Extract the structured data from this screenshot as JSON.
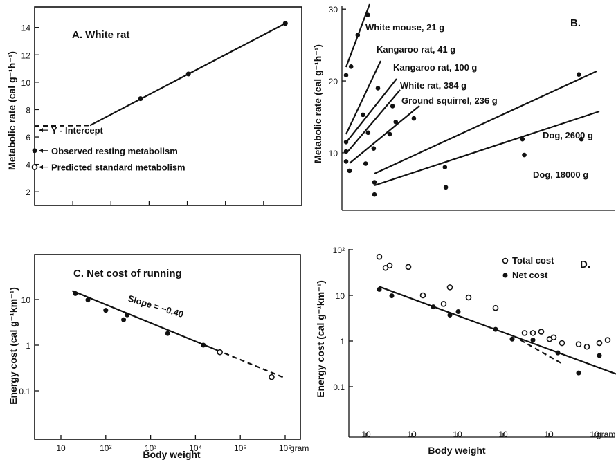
{
  "chart_data": [
    {
      "panel": "A",
      "type": "line",
      "title": "A.  White rat",
      "ylabel": "Metabolic rate (cal g⁻¹h⁻¹)",
      "yticks": [
        "2",
        "4",
        "6",
        "8",
        "10",
        "12",
        "14"
      ],
      "ylim": [
        1,
        15.5
      ],
      "x_scale": "log",
      "xlim": [
        3,
        1000
      ],
      "x_data_unit": "running speed (not labeled)",
      "points_x": [
        10,
        30,
        85,
        700
      ],
      "points_y": [
        3.8,
        8.8,
        10.6,
        14.3
      ],
      "solid_segment_x": [
        10,
        700
      ],
      "dashed_segment_x": [
        3,
        10
      ],
      "intercept_y": 6.8,
      "annotations": [
        {
          "text": "Y - Intercept",
          "y": 6.5
        },
        {
          "text": "Observed resting metabolism",
          "y": 5.0
        },
        {
          "text": "Predicted standard metabolism",
          "y": 3.8
        }
      ]
    },
    {
      "panel": "B",
      "type": "line",
      "title": "B.",
      "ylabel": "Metabolic rate (cal g⁻¹h⁻¹)",
      "yticks": [
        "10",
        "20",
        "30"
      ],
      "ylim": [
        2,
        30.5
      ],
      "series": [
        {
          "name": "White mouse, 21 g",
          "x": [
            1.0,
            1.3,
            1.7,
            2.3
          ],
          "y": [
            20.8,
            22.0,
            26.4,
            29.2
          ]
        },
        {
          "name": "Kangaroo rat, 41 g",
          "x": [
            1.0,
            1.9,
            2.7
          ],
          "y": [
            11.5,
            15.3,
            19.0
          ]
        },
        {
          "name": "Kangaroo rat, 100 g",
          "x": [
            1.0,
            1.9,
            2.9
          ],
          "y": [
            10.2,
            12.8,
            16.5
          ]
        },
        {
          "name": "White rat, 384 g",
          "x": [
            1.0,
            2.0,
            2.8
          ],
          "y": [
            8.8,
            10.6,
            14.3
          ]
        },
        {
          "name": "Ground squirrel, 236 g",
          "x": [
            1.0,
            2.0,
            3.5,
            5.0
          ],
          "y": [
            7.5,
            8.5,
            12.6,
            14.8
          ]
        },
        {
          "name": "Dog, 2600 g",
          "x": [
            3.5,
            8.5,
            14.0,
            18.0
          ],
          "y": [
            5.9,
            8.0,
            11.9,
            20.9
          ]
        },
        {
          "name": "Dog, 18000 g",
          "x": [
            3.5,
            8.5,
            14.0,
            18.0
          ],
          "y": [
            4.2,
            5.2,
            9.7,
            11.9
          ]
        }
      ]
    },
    {
      "panel": "C",
      "type": "scatter",
      "title": "C.  Net cost of running",
      "ylabel": "Energy cost (cal g⁻¹km⁻¹)",
      "xlabel": "Body weight",
      "x_scale": "log",
      "y_scale": "log",
      "xlim": [
        10,
        1000000
      ],
      "ylim": [
        0.025,
        100
      ],
      "xticks": [
        "10",
        "10²",
        "10³",
        "10⁴",
        "10⁵",
        "10⁶"
      ],
      "xtick_values": [
        10,
        100,
        1000,
        10000,
        100000,
        1000000
      ],
      "x_unit": "gram",
      "yticks": [
        "0.1",
        "1",
        "10"
      ],
      "ytick_values": [
        0.1,
        1,
        10
      ],
      "filled_points": [
        [
          21,
          13.5
        ],
        [
          40,
          9.8
        ],
        [
          100,
          5.8
        ],
        [
          250,
          3.6
        ],
        [
          300,
          4.6
        ],
        [
          2400,
          1.8
        ],
        [
          15000,
          1.0
        ]
      ],
      "open_points": [
        [
          35000,
          0.7
        ],
        [
          500000,
          0.2
        ]
      ],
      "fit_line": {
        "slope_label": "Slope = −0.40",
        "x_start": 18,
        "x_end_solid": 30000,
        "x_end_dashed": 1000000,
        "y_start": 15.5,
        "y_end": 0.19
      }
    },
    {
      "panel": "D",
      "type": "scatter",
      "title": "D.",
      "ylabel": "Energy cost (cal g⁻¹km⁻¹)",
      "xlabel": "Body weight",
      "y_scale": "log",
      "ylim": [
        0.01,
        100
      ],
      "yticks": [
        "0.1",
        "1",
        "10",
        "10²"
      ],
      "ytick_values": [
        0.1,
        1,
        10,
        100
      ],
      "xticks": [
        "10",
        "10",
        "10",
        "10",
        "10",
        "10"
      ],
      "x_unit": "gram",
      "legend": {
        "position": "top-right",
        "entries": [
          {
            "label": "Total cost",
            "marker": "open"
          },
          {
            "label": "Net cost",
            "marker": "filled"
          }
        ]
      },
      "open_points": [
        [
          0.06,
          70
        ],
        [
          0.09,
          40
        ],
        [
          0.11,
          45
        ],
        [
          0.2,
          42
        ],
        [
          0.27,
          10
        ],
        [
          0.37,
          6.5
        ],
        [
          0.4,
          15
        ],
        [
          0.49,
          9
        ],
        [
          0.62,
          5.3
        ],
        [
          0.76,
          1.5
        ],
        [
          0.8,
          1.5
        ],
        [
          0.84,
          1.6
        ],
        [
          0.88,
          1.1
        ],
        [
          0.9,
          1.2
        ],
        [
          0.94,
          0.9
        ],
        [
          1.02,
          0.85
        ],
        [
          1.06,
          0.75
        ],
        [
          1.12,
          0.9
        ],
        [
          1.16,
          1.05
        ]
      ],
      "filled_points": [
        [
          0.06,
          13.5
        ],
        [
          0.12,
          9.8
        ],
        [
          0.32,
          5.6
        ],
        [
          0.4,
          3.7
        ],
        [
          0.44,
          4.4
        ],
        [
          0.62,
          1.8
        ],
        [
          0.7,
          1.1
        ],
        [
          0.8,
          1.05
        ],
        [
          0.92,
          0.55
        ],
        [
          1.02,
          0.2
        ],
        [
          1.12,
          0.48
        ]
      ],
      "fit_line": {
        "x_start": 0.06,
        "x_end": 1.2,
        "y_start": 15.5,
        "y_end": 0.19
      },
      "dashed_segment": {
        "x": [
          0.74,
          0.94
        ],
        "y": [
          1.05,
          0.32
        ]
      }
    }
  ]
}
